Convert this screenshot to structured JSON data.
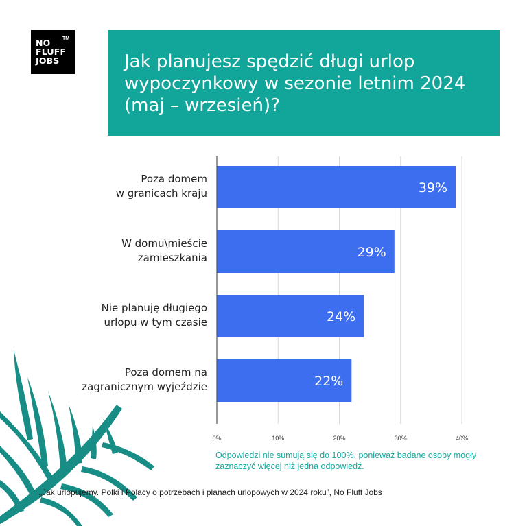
{
  "logo": {
    "text": "NO\nFLUFF\nJOBS",
    "tm": "TM"
  },
  "title": "Jak planujesz spędzić długi urlop wypoczynkowy w sezonie letnim 2024 (maj – wrzesień)?",
  "note": "Odpowiedzi nie sumują się do 100%, ponieważ badane osoby mogły zaznaczyć więcej niż jedna odpowiedź.",
  "source": "„Jak urlopujemy. Polki i Polacy o potrzebach i planach urlopowych w 2024 roku”, No Fluff Jobs",
  "colors": {
    "teal": "#12a69b",
    "bar": "#3d6ef0",
    "palm": "#178d86"
  },
  "chart_data": {
    "type": "bar",
    "orientation": "horizontal",
    "categories": [
      [
        "Poza domem",
        "w granicach kraju"
      ],
      [
        "W domu\\mieście",
        "zamieszkania"
      ],
      [
        "Nie planuję długiego",
        "urlopu w tym czasie"
      ],
      [
        "Poza domem na",
        "zagranicznym wyjeździe"
      ]
    ],
    "values": [
      39,
      29,
      24,
      22
    ],
    "value_labels": [
      "39%",
      "29%",
      "24%",
      "22%"
    ],
    "xlim": [
      0,
      40
    ],
    "xticks": [
      "0%",
      "10%",
      "20%",
      "30%",
      "40%"
    ],
    "grid": true
  }
}
